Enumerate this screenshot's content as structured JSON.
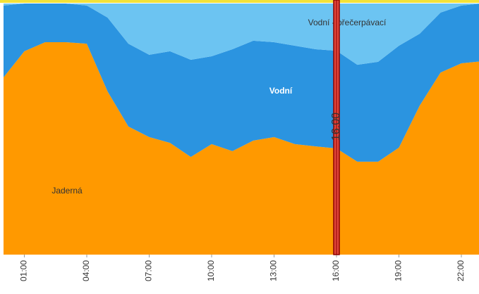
{
  "chart_data": {
    "type": "stacked-area",
    "x": [
      0,
      1,
      2,
      3,
      4,
      5,
      6,
      7,
      8,
      9,
      10,
      11,
      12,
      13,
      14,
      15,
      16,
      17,
      18,
      19,
      20,
      21,
      22,
      23
    ],
    "xlim": [
      0,
      23
    ],
    "xticks": [
      {
        "value": 1,
        "label": "01:00"
      },
      {
        "value": 4,
        "label": "04:00"
      },
      {
        "value": 7,
        "label": "07:00"
      },
      {
        "value": 10,
        "label": "10:00"
      },
      {
        "value": 13,
        "label": "13:00"
      },
      {
        "value": 16,
        "label": "16:00"
      },
      {
        "value": 19,
        "label": "19:00"
      },
      {
        "value": 22,
        "label": "22:00"
      }
    ],
    "ylim": [
      0,
      100
    ],
    "series": [
      {
        "name": "Jaderná",
        "color": "#ff9900",
        "values": [
          70.6,
          81.0,
          84.6,
          84.6,
          84.0,
          65.0,
          51.0,
          46.8,
          44.5,
          38.9,
          44.0,
          41.2,
          45.4,
          46.8,
          44.0,
          43.1,
          42.3,
          37.0,
          37.0,
          42.6,
          59.4,
          72.5,
          76.2,
          77.0
        ]
      },
      {
        "name": "Vodní",
        "color": "#2b94e0",
        "values": [
          28.6,
          19.0,
          15.4,
          15.4,
          15.2,
          29.4,
          33.0,
          32.8,
          36.5,
          38.7,
          35.0,
          40.6,
          39.8,
          37.8,
          39.2,
          38.7,
          38.9,
          38.6,
          39.8,
          40.6,
          28.6,
          23.9,
          23.0,
          23.0
        ]
      },
      {
        "name": "Vodní - přečerpávací",
        "color": "#6cc4f2",
        "values": [
          0.8,
          0,
          0,
          0,
          0.8,
          5.6,
          16.0,
          20.4,
          19.0,
          22.4,
          21.0,
          18.2,
          14.8,
          15.4,
          16.8,
          18.2,
          18.8,
          24.4,
          23.2,
          16.8,
          12.0,
          3.6,
          0.8,
          0
        ]
      }
    ],
    "annotations": [
      {
        "x": 16,
        "label": "16:00"
      }
    ]
  }
}
